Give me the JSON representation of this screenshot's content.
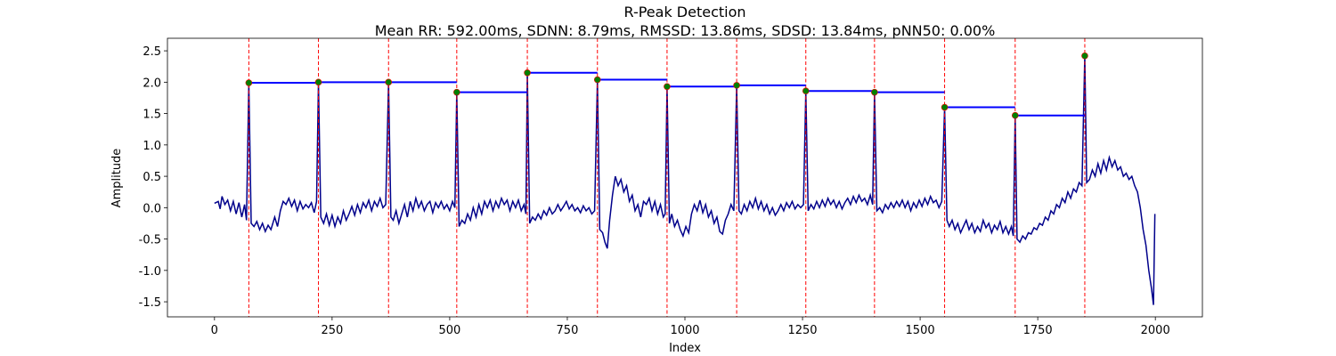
{
  "chart_data": {
    "type": "line",
    "title": "R-Peak Detection",
    "subtitle": "Mean RR: 592.00ms, SDNN: 8.79ms, RMSSD: 13.86ms, SDSD: 13.84ms, pNN50: 0.00%",
    "x_label": "Index",
    "y_label": "Amplitude",
    "xlim": [
      -100,
      2100
    ],
    "ylim": [
      -1.74,
      2.7
    ],
    "xticks": [
      0,
      250,
      500,
      750,
      1000,
      1250,
      1500,
      1750,
      2000
    ],
    "yticks": [
      -1.5,
      {
        "value": -1,
        "label": "-1.0"
      },
      -0.5,
      {
        "value": 0,
        "label": "0.0"
      },
      0.5,
      {
        "value": 1,
        "label": "1.0"
      },
      1.5,
      {
        "value": 2,
        "label": "2.0"
      },
      2.5
    ],
    "signal": {
      "color": "#00008b",
      "x": [
        0,
        8,
        12,
        16,
        22,
        28,
        34,
        40,
        46,
        52,
        58,
        64,
        68,
        73,
        78,
        84,
        90,
        96,
        102,
        108,
        114,
        120,
        128,
        134,
        140,
        146,
        152,
        158,
        164,
        170,
        176,
        182,
        188,
        194,
        200,
        206,
        212,
        217,
        221,
        226,
        232,
        238,
        244,
        250,
        256,
        262,
        268,
        274,
        280,
        286,
        292,
        298,
        304,
        310,
        316,
        322,
        328,
        334,
        340,
        346,
        352,
        358,
        364,
        370,
        375,
        380,
        386,
        392,
        398,
        404,
        410,
        416,
        422,
        428,
        434,
        440,
        446,
        452,
        458,
        464,
        470,
        476,
        482,
        488,
        494,
        500,
        506,
        511,
        515,
        520,
        526,
        532,
        538,
        544,
        550,
        556,
        562,
        568,
        574,
        580,
        586,
        592,
        598,
        604,
        610,
        616,
        622,
        628,
        634,
        640,
        646,
        652,
        658,
        662,
        665,
        670,
        676,
        682,
        688,
        694,
        700,
        706,
        712,
        718,
        724,
        730,
        736,
        742,
        748,
        754,
        760,
        766,
        772,
        778,
        784,
        790,
        796,
        802,
        808,
        814,
        819,
        825,
        830,
        835,
        840,
        846,
        852,
        858,
        864,
        870,
        876,
        882,
        888,
        894,
        900,
        906,
        912,
        918,
        924,
        930,
        936,
        942,
        948,
        954,
        958,
        962,
        967,
        972,
        978,
        984,
        990,
        996,
        1002,
        1008,
        1014,
        1020,
        1026,
        1032,
        1038,
        1044,
        1050,
        1056,
        1062,
        1068,
        1074,
        1080,
        1086,
        1092,
        1098,
        1104,
        1110,
        1115,
        1120,
        1126,
        1132,
        1138,
        1144,
        1150,
        1156,
        1162,
        1168,
        1174,
        1180,
        1186,
        1192,
        1198,
        1204,
        1210,
        1216,
        1222,
        1228,
        1234,
        1240,
        1246,
        1252,
        1257,
        1262,
        1268,
        1274,
        1280,
        1286,
        1292,
        1298,
        1304,
        1310,
        1316,
        1322,
        1328,
        1334,
        1340,
        1346,
        1352,
        1358,
        1364,
        1370,
        1376,
        1382,
        1388,
        1394,
        1399,
        1403,
        1408,
        1414,
        1420,
        1426,
        1432,
        1438,
        1444,
        1450,
        1456,
        1462,
        1468,
        1474,
        1480,
        1486,
        1492,
        1498,
        1504,
        1510,
        1516,
        1522,
        1528,
        1534,
        1540,
        1546,
        1552,
        1557,
        1562,
        1568,
        1574,
        1580,
        1586,
        1592,
        1598,
        1604,
        1610,
        1616,
        1622,
        1628,
        1634,
        1640,
        1646,
        1652,
        1658,
        1664,
        1670,
        1676,
        1682,
        1688,
        1694,
        1698,
        1702,
        1706,
        1712,
        1718,
        1724,
        1730,
        1736,
        1742,
        1748,
        1754,
        1760,
        1766,
        1772,
        1778,
        1784,
        1790,
        1796,
        1802,
        1808,
        1814,
        1820,
        1826,
        1832,
        1838,
        1844,
        1850,
        1854,
        1860,
        1866,
        1872,
        1878,
        1884,
        1890,
        1896,
        1902,
        1908,
        1914,
        1920,
        1926,
        1932,
        1938,
        1944,
        1950,
        1956,
        1962,
        1968,
        1974,
        1980,
        1986,
        1992,
        1996,
        1999
      ],
      "values": [
        0.07,
        0.1,
        -0.02,
        0.18,
        0.05,
        0.12,
        -0.05,
        0.1,
        -0.1,
        0.08,
        -0.15,
        0.05,
        -0.2,
        1.99,
        -0.25,
        -0.3,
        -0.22,
        -0.35,
        -0.25,
        -0.38,
        -0.28,
        -0.35,
        -0.15,
        -0.3,
        -0.05,
        0.1,
        0.05,
        0.15,
        0.02,
        0.12,
        -0.05,
        0.1,
        -0.02,
        0.05,
        0.0,
        0.08,
        -0.08,
        0.1,
        2.0,
        -0.15,
        -0.25,
        -0.1,
        -0.28,
        -0.12,
        -0.3,
        -0.15,
        -0.25,
        -0.05,
        -0.2,
        -0.1,
        0.02,
        -0.12,
        0.05,
        -0.08,
        0.08,
        0.0,
        0.12,
        -0.05,
        0.1,
        0.02,
        0.15,
        0.0,
        0.05,
        2.0,
        -0.15,
        -0.2,
        -0.05,
        -0.25,
        -0.1,
        0.05,
        -0.15,
        0.1,
        -0.05,
        0.15,
        0.0,
        0.1,
        -0.05,
        0.05,
        0.1,
        -0.08,
        0.08,
        0.0,
        0.1,
        -0.02,
        0.05,
        -0.05,
        0.1,
        0.0,
        1.84,
        -0.3,
        -0.2,
        -0.25,
        -0.1,
        -0.2,
        0.0,
        -0.15,
        0.05,
        -0.1,
        0.1,
        0.0,
        0.12,
        -0.05,
        0.1,
        0.0,
        0.15,
        0.05,
        0.12,
        -0.05,
        0.1,
        0.0,
        0.12,
        -0.05,
        0.05,
        -0.1,
        2.15,
        -0.25,
        -0.15,
        -0.2,
        -0.1,
        -0.18,
        -0.05,
        -0.12,
        0.0,
        -0.1,
        -0.05,
        0.05,
        -0.05,
        0.02,
        0.1,
        -0.02,
        0.05,
        -0.05,
        0.0,
        -0.08,
        0.03,
        -0.05,
        0.0,
        -0.1,
        -0.05,
        2.04,
        -0.35,
        -0.4,
        -0.55,
        -0.65,
        -0.2,
        0.2,
        0.5,
        0.35,
        0.45,
        0.25,
        0.35,
        0.1,
        0.2,
        -0.05,
        0.05,
        -0.15,
        0.1,
        0.05,
        0.15,
        -0.05,
        0.1,
        -0.1,
        0.05,
        -0.15,
        -0.1,
        1.93,
        -0.25,
        -0.1,
        -0.3,
        -0.2,
        -0.35,
        -0.45,
        -0.3,
        -0.4,
        -0.1,
        0.05,
        -0.05,
        0.12,
        -0.08,
        0.05,
        -0.15,
        -0.05,
        -0.25,
        -0.15,
        -0.38,
        -0.42,
        -0.2,
        -0.1,
        0.05,
        -0.05,
        1.95,
        -0.05,
        -0.1,
        0.05,
        -0.05,
        0.1,
        0.0,
        0.15,
        -0.02,
        0.1,
        -0.05,
        0.05,
        -0.1,
        0.0,
        -0.12,
        -0.05,
        0.05,
        -0.05,
        0.08,
        0.0,
        0.1,
        -0.02,
        0.05,
        0.0,
        0.05,
        1.86,
        -0.05,
        0.05,
        -0.02,
        0.1,
        0.0,
        0.12,
        0.02,
        0.15,
        0.05,
        0.12,
        0.0,
        0.1,
        -0.02,
        0.08,
        0.15,
        0.05,
        0.18,
        0.08,
        0.2,
        0.1,
        0.15,
        0.05,
        0.2,
        0.05,
        1.84,
        -0.05,
        0.0,
        -0.08,
        0.05,
        -0.02,
        0.08,
        0.0,
        0.1,
        0.02,
        0.12,
        0.0,
        0.1,
        -0.05,
        0.08,
        0.0,
        0.12,
        0.02,
        0.15,
        0.05,
        0.18,
        0.08,
        0.12,
        0.0,
        0.1,
        1.6,
        -0.2,
        -0.3,
        -0.2,
        -0.35,
        -0.25,
        -0.4,
        -0.3,
        -0.2,
        -0.35,
        -0.25,
        -0.4,
        -0.3,
        -0.38,
        -0.2,
        -0.32,
        -0.25,
        -0.4,
        -0.28,
        -0.35,
        -0.22,
        -0.4,
        -0.3,
        -0.42,
        -0.3,
        -0.45,
        1.47,
        -0.5,
        -0.55,
        -0.45,
        -0.5,
        -0.4,
        -0.42,
        -0.32,
        -0.35,
        -0.25,
        -0.28,
        -0.15,
        -0.2,
        -0.05,
        -0.1,
        0.05,
        0.0,
        0.15,
        0.08,
        0.25,
        0.15,
        0.3,
        0.25,
        0.4,
        0.35,
        2.42,
        0.4,
        0.45,
        0.6,
        0.5,
        0.7,
        0.55,
        0.75,
        0.6,
        0.8,
        0.65,
        0.75,
        0.6,
        0.65,
        0.5,
        0.55,
        0.45,
        0.5,
        0.35,
        0.25,
        0.0,
        -0.35,
        -0.6,
        -1.0,
        -1.3,
        -1.55,
        -0.1
      ]
    },
    "peaks": {
      "color": "#008000",
      "line_color": "#ff0000",
      "interval_color": "#0000ff",
      "x": [
        73,
        221,
        370,
        515,
        665,
        814,
        962,
        1110,
        1257,
        1403,
        1552,
        1702,
        1850
      ],
      "values": [
        1.99,
        2.0,
        2.0,
        1.84,
        2.15,
        2.04,
        1.93,
        1.95,
        1.86,
        1.84,
        1.6,
        1.47,
        2.42
      ]
    }
  }
}
